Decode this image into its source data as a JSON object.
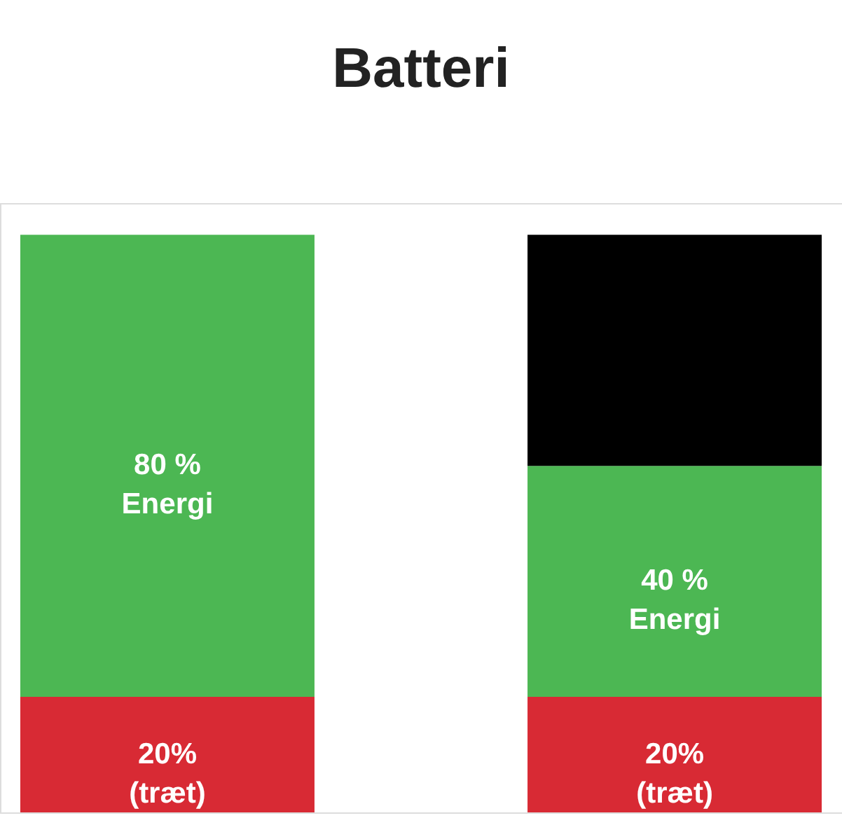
{
  "chart_data": {
    "type": "bar",
    "title": "Batteri",
    "categories": [
      null,
      null
    ],
    "stacked": true,
    "tick_labels": false,
    "series": [
      {
        "color": "#d82a34",
        "values": [
          20,
          20
        ],
        "value_labels": [
          "20%\n(træt)",
          "20%\n(træt)"
        ]
      },
      {
        "color": "#4cb753",
        "values": [
          80,
          40
        ],
        "value_labels": [
          "80 %\nEnergi",
          "40 %\nEnergi"
        ]
      },
      {
        "color": "#000000",
        "values": [
          null,
          40
        ],
        "value_labels": [
          null,
          null
        ]
      }
    ]
  }
}
